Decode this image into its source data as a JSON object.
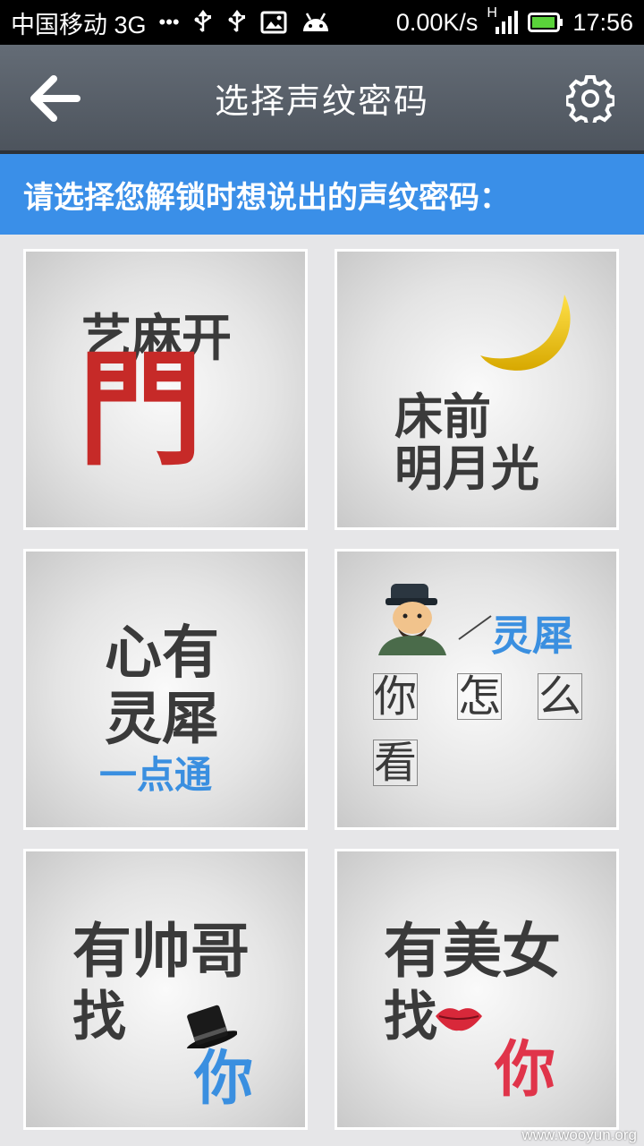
{
  "status_bar": {
    "carrier": "中国移动 3G",
    "dots": "•••",
    "speed": "0.00K/s",
    "network_type": "H",
    "time": "17:56",
    "icons": [
      "usb-icon",
      "usb-icon",
      "image-icon",
      "android-icon",
      "signal-icon",
      "battery-icon"
    ]
  },
  "header": {
    "title": "选择声纹密码",
    "back_icon": "arrow-left-icon",
    "settings_icon": "gear-icon"
  },
  "banner": {
    "text": "请选择您解锁时想说出的声纹密码："
  },
  "options": [
    {
      "line1": "艺麻开",
      "line2": "門"
    },
    {
      "line1": "床前",
      "line2": "明月光"
    },
    {
      "line1": "心有",
      "line2": "灵犀",
      "line3": "一点通"
    },
    {
      "tag": "灵犀",
      "chars": [
        "你",
        "怎",
        "么",
        "看"
      ]
    },
    {
      "line1": "有帅哥",
      "line2": "找",
      "line3": "你"
    },
    {
      "line1": "有美女",
      "line2": "找",
      "line3": "你"
    }
  ],
  "colors": {
    "banner": "#3a8fe8",
    "titlebar": "#565e67",
    "accent_red": "#c62a28",
    "accent_blue": "#3a8fe0",
    "accent_pink": "#e0344a",
    "moon": "#f2c811"
  },
  "watermark": "www.wooyun.org"
}
